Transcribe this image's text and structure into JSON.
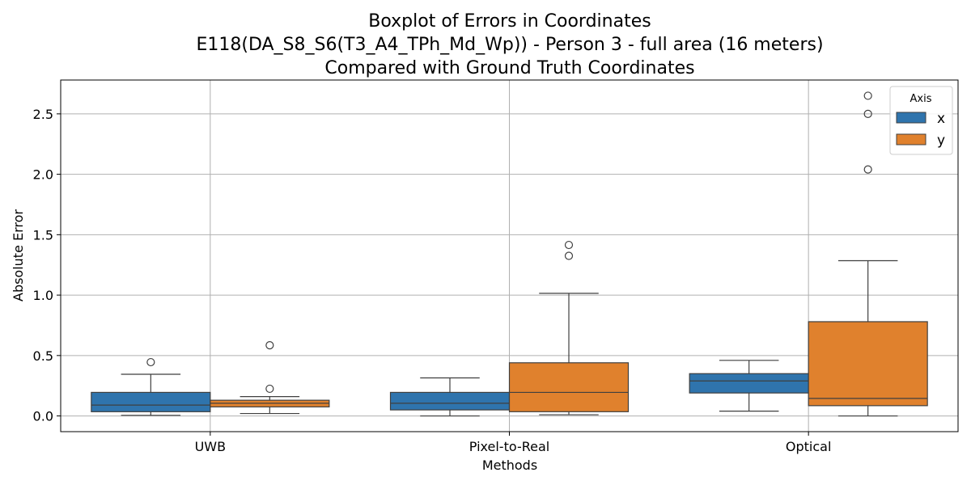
{
  "chart_data": {
    "type": "boxplot",
    "title": [
      "Boxplot of Errors in Coordinates",
      "E118(DA_S8_S6(T3_A4_TPh_Md_Wp)) - Person 3 - full area (16 meters)",
      "Compared with Ground Truth Coordinates"
    ],
    "xlabel": "Methods",
    "ylabel": "Absolute Error",
    "categories": [
      "UWB",
      "Pixel-to-Real",
      "Optical"
    ],
    "yticks": [
      "0.0",
      "0.5",
      "1.0",
      "1.5",
      "2.0",
      "2.5"
    ],
    "ylim": [
      -0.13,
      2.78
    ],
    "grid": true,
    "legend": {
      "title": "Axis",
      "position": "top-right",
      "entries": [
        "x",
        "y"
      ]
    },
    "series": [
      {
        "name": "x",
        "color": "#2f74ad",
        "boxes": [
          {
            "whislo": 0.005,
            "q1": 0.035,
            "med": 0.09,
            "q3": 0.195,
            "whishi": 0.345,
            "fliers": [
              0.445
            ]
          },
          {
            "whislo": 0.0,
            "q1": 0.05,
            "med": 0.105,
            "q3": 0.195,
            "whishi": 0.315,
            "fliers": []
          },
          {
            "whislo": 0.04,
            "q1": 0.19,
            "med": 0.29,
            "q3": 0.35,
            "whishi": 0.46,
            "fliers": []
          }
        ]
      },
      {
        "name": "y",
        "color": "#e0812d",
        "boxes": [
          {
            "whislo": 0.02,
            "q1": 0.075,
            "med": 0.105,
            "q3": 0.13,
            "whishi": 0.16,
            "fliers": [
              0.225,
              0.585
            ]
          },
          {
            "whislo": 0.01,
            "q1": 0.035,
            "med": 0.195,
            "q3": 0.44,
            "whishi": 1.015,
            "fliers": [
              1.325,
              1.415
            ]
          },
          {
            "whislo": 0.0,
            "q1": 0.085,
            "med": 0.145,
            "q3": 0.78,
            "whishi": 1.285,
            "fliers": [
              2.04,
              2.5,
              2.65
            ]
          }
        ]
      }
    ]
  }
}
